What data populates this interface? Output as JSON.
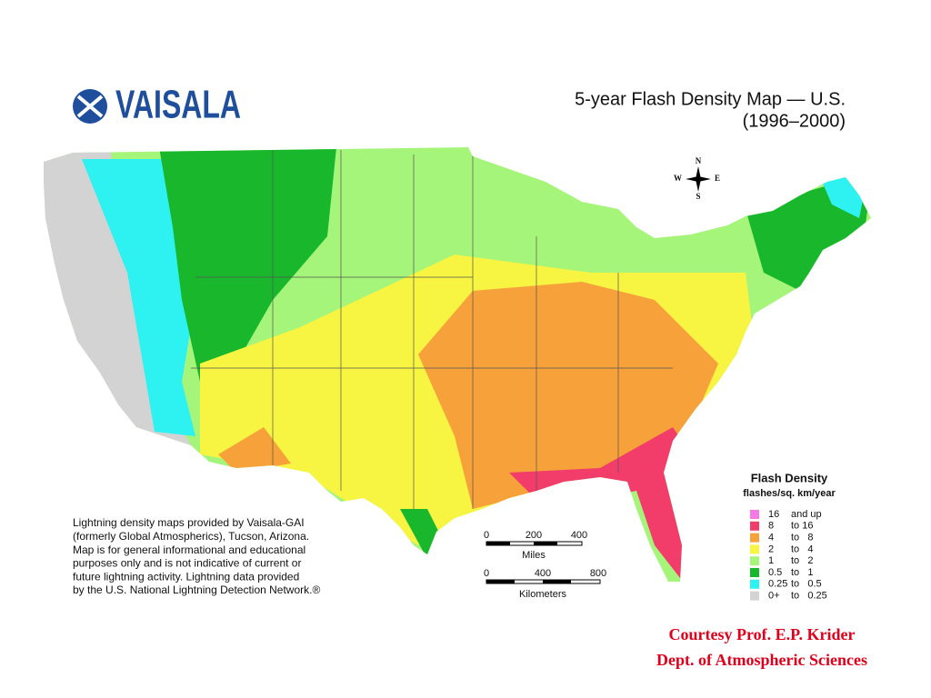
{
  "logo": "VAISALA",
  "title": {
    "line1": "5-year Flash Density Map — U.S.",
    "line2": "(1996–2000)"
  },
  "compass": {
    "n": "N",
    "s": "S",
    "e": "E",
    "w": "W"
  },
  "legend": {
    "title": "Flash Density",
    "subtitle": "flashes/sq. km/year",
    "rows": [
      {
        "from": "16",
        "to": "and up",
        "color": "#f57ae6"
      },
      {
        "from": "8",
        "to": "to 16",
        "color": "#f23d6b"
      },
      {
        "from": "4",
        "to": "to   8",
        "color": "#f7a13a"
      },
      {
        "from": "2",
        "to": "to   4",
        "color": "#f7f541"
      },
      {
        "from": "1",
        "to": "to   2",
        "color": "#a5f57a"
      },
      {
        "from": "0.5",
        "to": "to   1",
        "color": "#19b82c"
      },
      {
        "from": "0.25",
        "to": "to   0.5",
        "color": "#2ef2f2"
      },
      {
        "from": "0+",
        "to": "to   0.25",
        "color": "#d3d3d3"
      }
    ]
  },
  "note": [
    "Lightning density maps provided by Vaisala-GAI",
    "(formerly Global Atmospherics), Tucson, Arizona.",
    "Map is for general informational and educational",
    "purposes only and is not indicative of current or",
    "future lightning activity. Lightning data provided",
    "by the U.S. National Lightning Detection Network.®"
  ],
  "scale_miles": {
    "ticks": [
      "0",
      "200",
      "400"
    ],
    "unit": "Miles"
  },
  "scale_km": {
    "ticks": [
      "0",
      "400",
      "800"
    ],
    "unit": "Kilometers"
  },
  "courtesy": [
    "Courtesy Prof. E.P. Krider",
    "Dept. of Atmospheric Sciences"
  ]
}
